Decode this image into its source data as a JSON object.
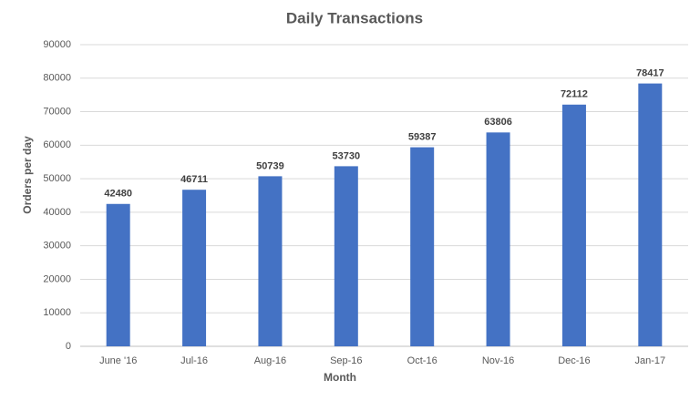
{
  "chart_data": {
    "type": "bar",
    "title": "Daily Transactions",
    "x_label": "Month",
    "y_label": "Orders per day",
    "categories": [
      "June '16",
      "Jul-16",
      "Aug-16",
      "Sep-16",
      "Oct-16",
      "Nov-16",
      "Dec-16",
      "Jan-17"
    ],
    "values": [
      42480,
      46711,
      50739,
      53730,
      59387,
      63806,
      72112,
      78417
    ],
    "color": "#4472c4",
    "ylim": [
      0,
      90000
    ],
    "yticks": [
      0,
      10000,
      20000,
      30000,
      40000,
      50000,
      60000,
      70000,
      80000,
      90000
    ],
    "grid": true
  }
}
